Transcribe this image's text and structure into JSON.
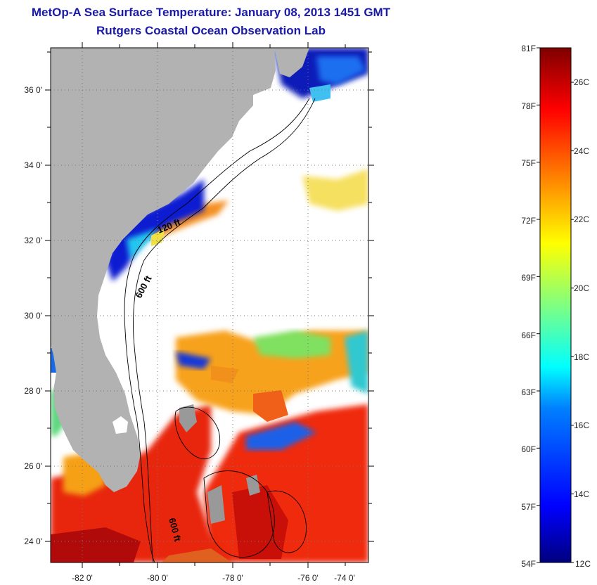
{
  "title": "MetOp-A Sea Surface Temperature:  January 08, 2013 1451 GMT",
  "subtitle": "Rutgers Coastal Ocean Observation Lab",
  "lat_labels": [
    "36 0'",
    "34 0'",
    "32 0'",
    "30 0'",
    "28 0'",
    "26 0'",
    "24 0'"
  ],
  "lon_labels": [
    "-82 0'",
    "-80 0'",
    "-78 0'",
    "-76 0'",
    "-74 0'"
  ],
  "depth_labels": [
    "120 ft",
    "600 ft",
    "600 ft"
  ],
  "colorbar": {
    "fahrenheit": [
      "81F",
      "78F",
      "75F",
      "72F",
      "69F",
      "66F",
      "63F",
      "60F",
      "57F",
      "54F"
    ],
    "celsius": [
      "26C",
      "24C",
      "22C",
      "20C",
      "18C",
      "16C",
      "14C",
      "12C"
    ],
    "range_c": [
      12,
      27
    ],
    "colors": [
      "#00007f",
      "#0000ff",
      "#0080ff",
      "#00ffff",
      "#80ff80",
      "#ffff00",
      "#ff8000",
      "#ff0000",
      "#7f0000"
    ]
  },
  "colors": {
    "land": "#b2b2b2",
    "ocean_nodata": "#ffffff",
    "title": "#1a1aa8"
  }
}
